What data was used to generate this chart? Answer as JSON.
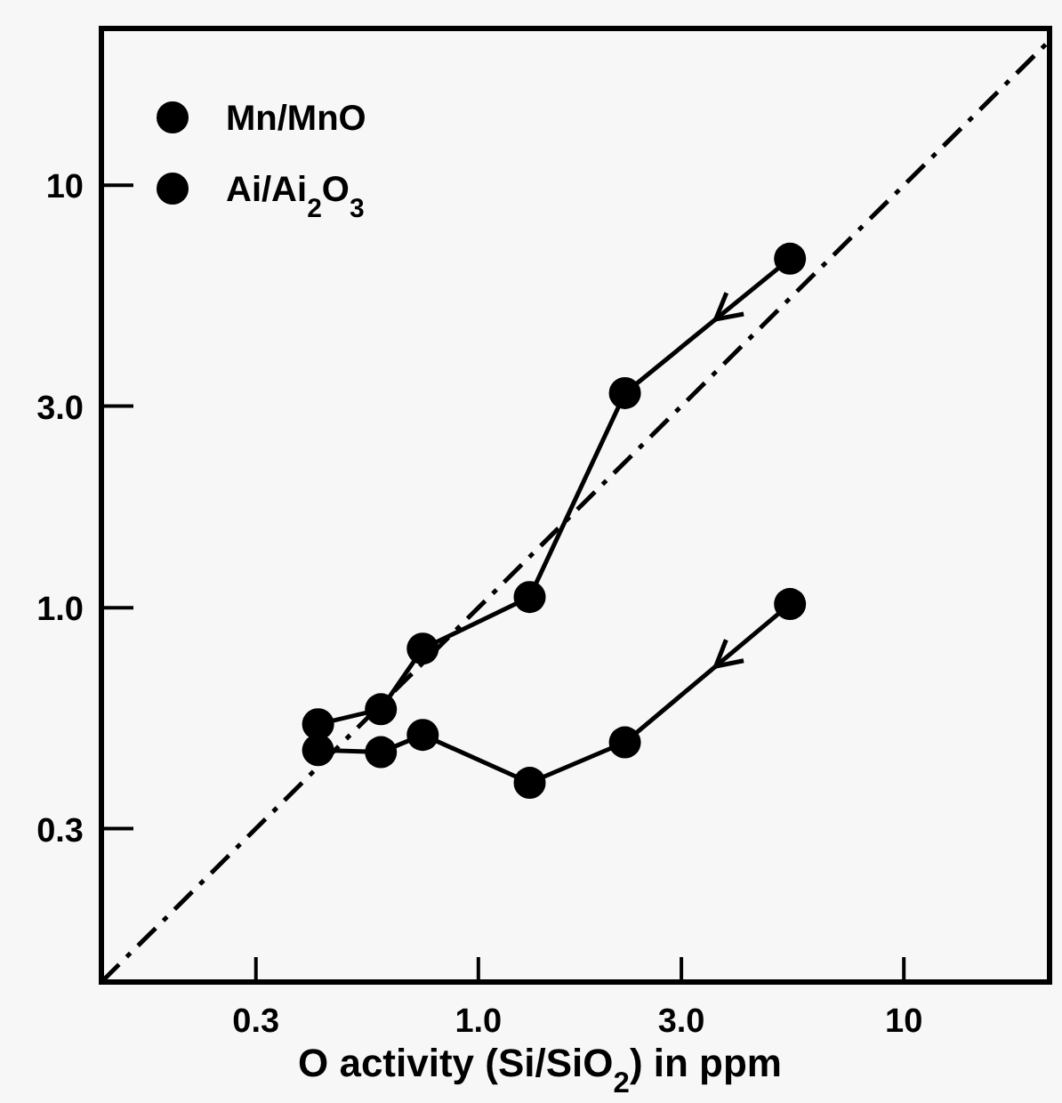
{
  "chart_data": {
    "type": "line",
    "xlabel": "O activity (Si/SiO$_{2}$) in ppm",
    "log": "xy",
    "xlim": [
      0.13,
      22
    ],
    "ylim": [
      0.13,
      23.5
    ],
    "xticks": [
      0.3,
      {
        "value": 1,
        "label": "1.0"
      },
      {
        "value": 3,
        "label": "3.0"
      },
      10
    ],
    "yticks": [
      0.3,
      {
        "value": 1,
        "label": "1.0"
      },
      {
        "value": 3,
        "label": "3.0"
      },
      10
    ],
    "grid": false,
    "legend": "top left",
    "marker": "circle",
    "line_style": "solid",
    "series": [
      {
        "name": "Mn/MnO",
        "color": "#000000",
        "x": [
          5.4,
          2.21,
          1.32,
          0.74,
          0.59,
          0.42
        ],
        "values": [
          6.7,
          3.22,
          1.06,
          0.8,
          0.575,
          0.53
        ]
      },
      {
        "name": "Ai/Ai$_{2}$O$_{3}$",
        "color": "#000000",
        "x": [
          5.4,
          2.21,
          1.32,
          0.74,
          0.59,
          0.42
        ],
        "values": [
          1.02,
          0.48,
          0.385,
          0.5,
          0.455,
          0.46
        ]
      },
      {
        "type": "line",
        "color": "#000000",
        "marker": "none",
        "line_style": "dashed",
        "x": [
          0.13,
          22
        ],
        "values": [
          0.13,
          22
        ]
      }
    ]
  }
}
